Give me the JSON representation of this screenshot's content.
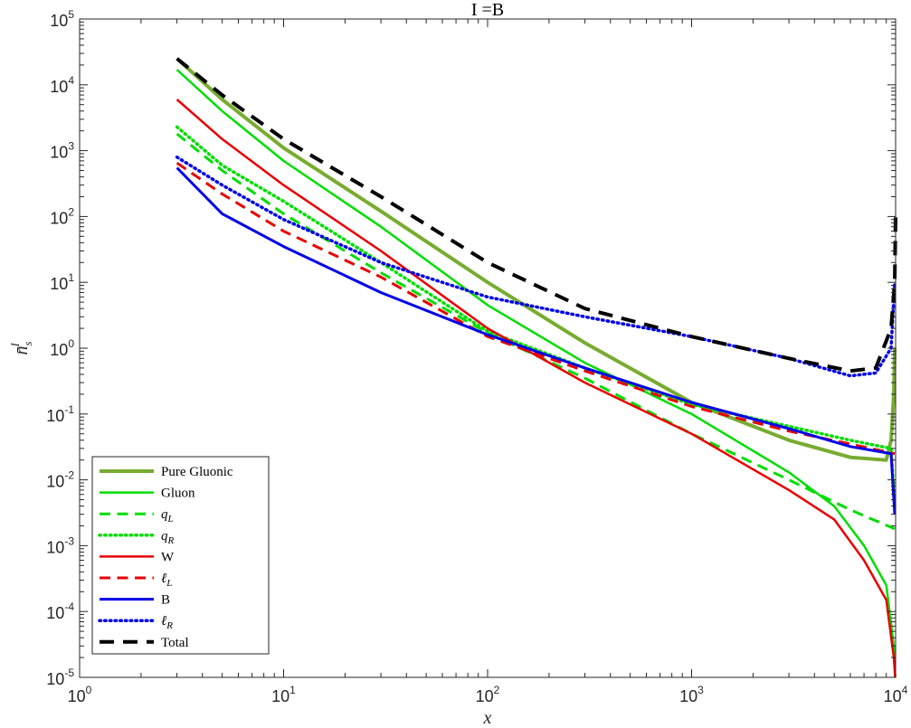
{
  "chart_data": {
    "type": "line",
    "title": "I =B",
    "xlabel": "x",
    "ylabel": "n̄_s^I",
    "xscale": "log",
    "yscale": "log",
    "xlim": [
      1,
      10000
    ],
    "ylim": [
      1e-05,
      100000
    ],
    "grid": false,
    "legend_position": "bottom-left",
    "x_ticks": [
      {
        "base": "10",
        "exp": "0"
      },
      {
        "base": "10",
        "exp": "1"
      },
      {
        "base": "10",
        "exp": "2"
      },
      {
        "base": "10",
        "exp": "3"
      },
      {
        "base": "10",
        "exp": "4"
      }
    ],
    "y_ticks": [
      {
        "base": "10",
        "exp": "-5"
      },
      {
        "base": "10",
        "exp": "-4"
      },
      {
        "base": "10",
        "exp": "-3"
      },
      {
        "base": "10",
        "exp": "-2"
      },
      {
        "base": "10",
        "exp": "-1"
      },
      {
        "base": "10",
        "exp": "0"
      },
      {
        "base": "10",
        "exp": "1"
      },
      {
        "base": "10",
        "exp": "2"
      },
      {
        "base": "10",
        "exp": "3"
      },
      {
        "base": "10",
        "exp": "4"
      },
      {
        "base": "10",
        "exp": "5"
      }
    ],
    "series": [
      {
        "name": "Pure Gluonic",
        "color": "#77ac30",
        "style": "solid",
        "width": 4,
        "points": [
          [
            3,
            25000
          ],
          [
            5,
            6000
          ],
          [
            10,
            1100
          ],
          [
            30,
            120
          ],
          [
            100,
            10
          ],
          [
            300,
            1.2
          ],
          [
            1000,
            0.15
          ],
          [
            3000,
            0.04
          ],
          [
            6000,
            0.022
          ],
          [
            9000,
            0.02
          ],
          [
            9500,
            0.04
          ],
          [
            9800,
            0.2
          ],
          [
            9900,
            1
          ]
        ]
      },
      {
        "name": "Gluon",
        "color": "#00dd00",
        "style": "solid",
        "width": 2.5,
        "points": [
          [
            3,
            17000
          ],
          [
            5,
            4000
          ],
          [
            10,
            700
          ],
          [
            30,
            70
          ],
          [
            100,
            4.5
          ],
          [
            300,
            0.6
          ],
          [
            1000,
            0.1
          ],
          [
            3000,
            0.013
          ],
          [
            5000,
            0.004
          ],
          [
            7000,
            0.001
          ],
          [
            9000,
            0.00025
          ],
          [
            9800,
            3e-05
          ],
          [
            9950,
            1e-05
          ]
        ]
      },
      {
        "name": "q_L",
        "label": "q",
        "sub": "L",
        "color": "#00dd00",
        "style": "dashed",
        "width": 3,
        "points": [
          [
            3,
            1800
          ],
          [
            5,
            500
          ],
          [
            10,
            110
          ],
          [
            30,
            14
          ],
          [
            100,
            1.7
          ],
          [
            300,
            0.35
          ],
          [
            1000,
            0.05
          ],
          [
            3000,
            0.01
          ],
          [
            6000,
            0.0035
          ],
          [
            9900,
            0.0018
          ]
        ]
      },
      {
        "name": "q_R",
        "label": "q",
        "sub": "R",
        "color": "#00dd00",
        "style": "dotted",
        "width": 3.5,
        "points": [
          [
            3,
            2300
          ],
          [
            5,
            600
          ],
          [
            10,
            170
          ],
          [
            30,
            20
          ],
          [
            100,
            1.8
          ],
          [
            300,
            0.5
          ],
          [
            1000,
            0.14
          ],
          [
            3000,
            0.065
          ],
          [
            6000,
            0.04
          ],
          [
            9500,
            0.03
          ],
          [
            9900,
            0.004
          ]
        ]
      },
      {
        "name": "W",
        "color": "#e80000",
        "style": "solid",
        "width": 2.5,
        "points": [
          [
            3,
            6000
          ],
          [
            5,
            1500
          ],
          [
            10,
            300
          ],
          [
            30,
            30
          ],
          [
            100,
            2
          ],
          [
            300,
            0.3
          ],
          [
            1000,
            0.05
          ],
          [
            3000,
            0.007
          ],
          [
            5000,
            0.0025
          ],
          [
            7000,
            0.0006
          ],
          [
            9000,
            0.00015
          ],
          [
            9800,
            2e-05
          ],
          [
            9950,
            1e-05
          ]
        ]
      },
      {
        "name": "ℓ_L",
        "label": "ℓ",
        "sub": "L",
        "color": "#e80000",
        "style": "dashed",
        "width": 3,
        "points": [
          [
            3,
            650
          ],
          [
            5,
            220
          ],
          [
            10,
            60
          ],
          [
            30,
            12
          ],
          [
            100,
            1.5
          ],
          [
            300,
            0.45
          ],
          [
            1000,
            0.13
          ],
          [
            3000,
            0.055
          ],
          [
            6000,
            0.035
          ],
          [
            9900,
            0.025
          ]
        ]
      },
      {
        "name": "B",
        "color": "#0000e6",
        "style": "solid",
        "width": 3,
        "points": [
          [
            3,
            550
          ],
          [
            5,
            110
          ],
          [
            10,
            35
          ],
          [
            30,
            7
          ],
          [
            100,
            1.6
          ],
          [
            300,
            0.5
          ],
          [
            1000,
            0.15
          ],
          [
            3000,
            0.06
          ],
          [
            6000,
            0.032
          ],
          [
            9500,
            0.025
          ],
          [
            9900,
            0.003
          ]
        ]
      },
      {
        "name": "ℓ_R",
        "label": "ℓ",
        "sub": "R",
        "color": "#0000e6",
        "style": "dotted",
        "width": 3.5,
        "points": [
          [
            3,
            800
          ],
          [
            5,
            300
          ],
          [
            10,
            90
          ],
          [
            30,
            20
          ],
          [
            100,
            6
          ],
          [
            300,
            3
          ],
          [
            1000,
            1.5
          ],
          [
            3000,
            0.7
          ],
          [
            6000,
            0.38
          ],
          [
            8000,
            0.42
          ],
          [
            9500,
            1
          ],
          [
            9900,
            10
          ]
        ]
      },
      {
        "name": "Total",
        "color": "#000000",
        "style": "dashed",
        "width": 4,
        "points": [
          [
            3,
            25000
          ],
          [
            5,
            7000
          ],
          [
            10,
            1500
          ],
          [
            30,
            200
          ],
          [
            100,
            20
          ],
          [
            300,
            4
          ],
          [
            1000,
            1.5
          ],
          [
            3000,
            0.7
          ],
          [
            6000,
            0.45
          ],
          [
            8000,
            0.5
          ],
          [
            9500,
            2
          ],
          [
            9900,
            10
          ],
          [
            10000,
            100
          ]
        ]
      }
    ]
  }
}
